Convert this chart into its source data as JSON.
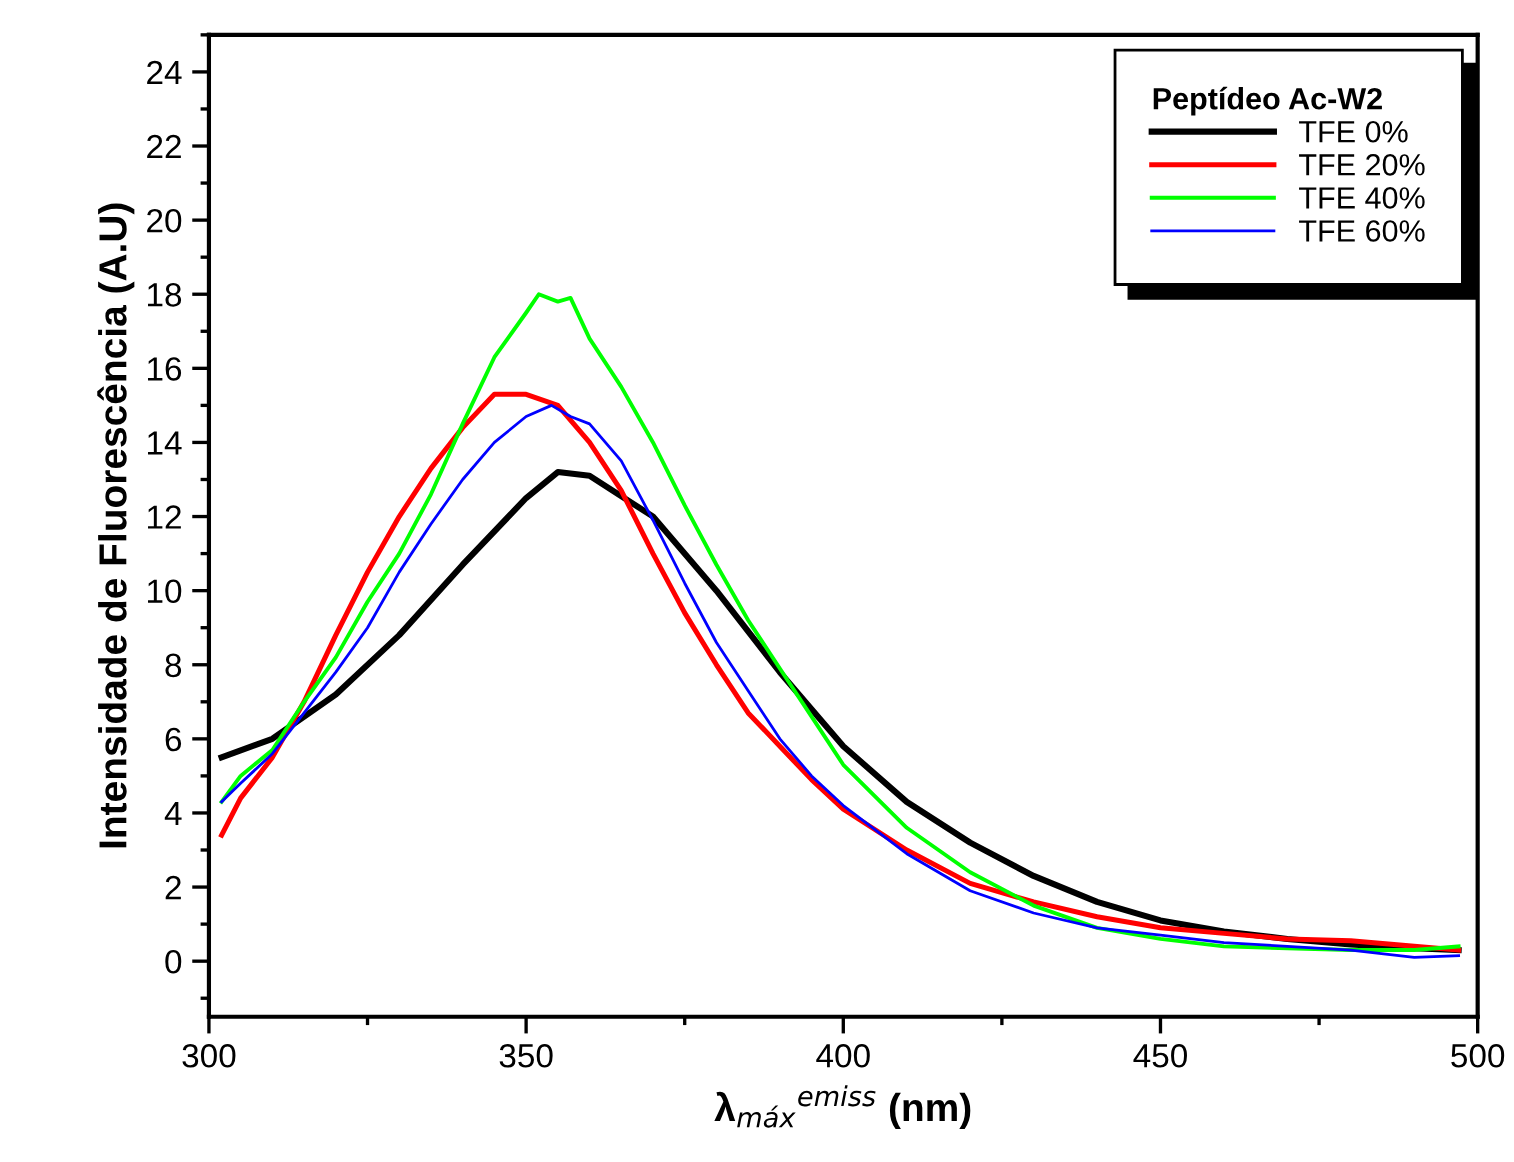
{
  "chart_data": {
    "type": "line",
    "xlabel": "λ$_{máx}$$^{emiss}$ (nm)",
    "ylabel": "Intensidade de Fluorescência (A.U)",
    "legend_title": "Peptídeo Ac-W2",
    "legend": "top right",
    "grid": false,
    "marker": "none",
    "line_style": "solid",
    "xlim": [
      300,
      500
    ],
    "xticks": [
      300,
      350,
      400,
      450,
      500
    ],
    "ylim": [
      -1.5,
      25
    ],
    "yticks": [
      0,
      2,
      4,
      6,
      8,
      10,
      12,
      14,
      16,
      18,
      20,
      22,
      24
    ],
    "series": [
      {
        "name": "TFE 0%",
        "color": "#000000",
        "x": [
          302,
          310,
          320,
          330,
          340,
          350,
          355,
          360,
          370,
          380,
          390,
          400,
          410,
          420,
          430,
          440,
          450,
          460,
          470,
          480,
          490,
          497
        ],
        "values": [
          5.5,
          6.0,
          7.2,
          8.8,
          10.7,
          12.5,
          13.2,
          13.1,
          12.0,
          10.0,
          7.8,
          5.8,
          4.3,
          3.2,
          2.3,
          1.6,
          1.1,
          0.8,
          0.6,
          0.45,
          0.35,
          0.3
        ]
      },
      {
        "name": "TFE 20%",
        "color": "#ff0000",
        "x": [
          302,
          305,
          310,
          315,
          320,
          325,
          330,
          335,
          340,
          345,
          350,
          355,
          360,
          365,
          370,
          375,
          380,
          385,
          390,
          395,
          400,
          410,
          420,
          430,
          440,
          450,
          460,
          470,
          480,
          490,
          497
        ],
        "values": [
          3.4,
          4.4,
          5.5,
          7.0,
          8.8,
          10.5,
          12.0,
          13.3,
          14.4,
          15.3,
          15.3,
          15.0,
          14.0,
          12.7,
          11.0,
          9.4,
          8.0,
          6.7,
          5.8,
          4.9,
          4.1,
          3.0,
          2.1,
          1.6,
          1.2,
          0.9,
          0.75,
          0.6,
          0.55,
          0.4,
          0.3
        ]
      },
      {
        "name": "TFE 40%",
        "color": "#00ff00",
        "x": [
          302,
          305,
          310,
          315,
          320,
          325,
          330,
          335,
          340,
          345,
          350,
          352,
          355,
          357,
          360,
          365,
          370,
          375,
          380,
          385,
          390,
          395,
          400,
          410,
          420,
          430,
          440,
          450,
          460,
          470,
          480,
          490,
          497
        ],
        "values": [
          4.3,
          5.0,
          5.7,
          7.0,
          8.2,
          9.7,
          11.0,
          12.6,
          14.5,
          16.3,
          17.5,
          18.0,
          17.8,
          17.9,
          16.8,
          15.5,
          14.0,
          12.3,
          10.7,
          9.2,
          7.9,
          6.6,
          5.3,
          3.6,
          2.4,
          1.5,
          0.9,
          0.6,
          0.4,
          0.35,
          0.3,
          0.3,
          0.4
        ]
      },
      {
        "name": "TFE 60%",
        "color": "#0000ff",
        "x": [
          302,
          305,
          310,
          315,
          320,
          325,
          330,
          335,
          340,
          345,
          350,
          354,
          357,
          360,
          365,
          370,
          375,
          380,
          385,
          390,
          395,
          400,
          410,
          420,
          430,
          440,
          450,
          460,
          470,
          480,
          490,
          497
        ],
        "values": [
          4.3,
          4.8,
          5.6,
          6.7,
          7.8,
          9.0,
          10.5,
          11.8,
          13.0,
          14.0,
          14.7,
          15.0,
          14.7,
          14.5,
          13.5,
          11.9,
          10.2,
          8.6,
          7.3,
          6.0,
          5.0,
          4.2,
          2.9,
          1.9,
          1.3,
          0.9,
          0.7,
          0.5,
          0.4,
          0.3,
          0.1,
          0.15
        ]
      }
    ]
  }
}
